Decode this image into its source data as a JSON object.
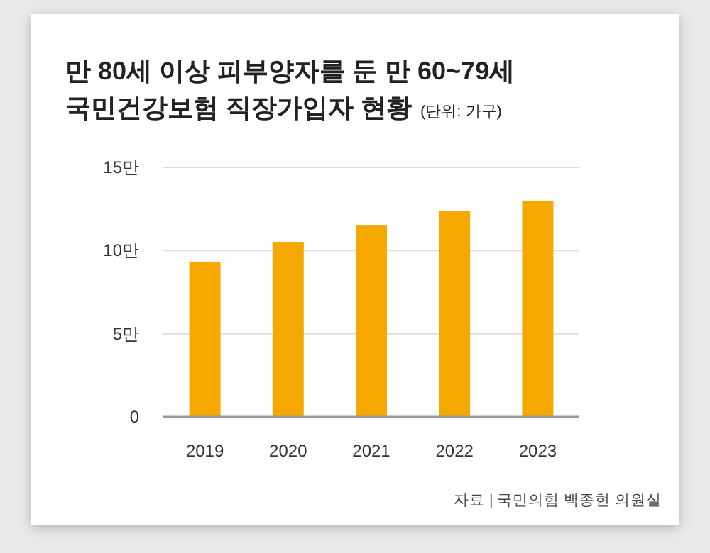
{
  "chart_data": {
    "type": "bar",
    "title": "만 80세 이상 피부양자를 둔 만 60~79세 국민건강보험 직장가입자 현황",
    "subtitle": "(단위: 가구)",
    "categories": [
      "2019",
      "2020",
      "2021",
      "2022",
      "2023"
    ],
    "values": [
      9.3,
      10.5,
      11.5,
      12.4,
      13.0
    ],
    "color": "#f5a800",
    "ylim": [
      0,
      15
    ],
    "yticks": [
      0,
      {
        "value": 5,
        "label": "5만"
      },
      {
        "value": 10,
        "label": "10만"
      },
      {
        "value": 15,
        "label": "15만"
      }
    ],
    "grid": "y",
    "annotations": [
      "자료 | 국민의힘 백종현 의원실"
    ]
  }
}
